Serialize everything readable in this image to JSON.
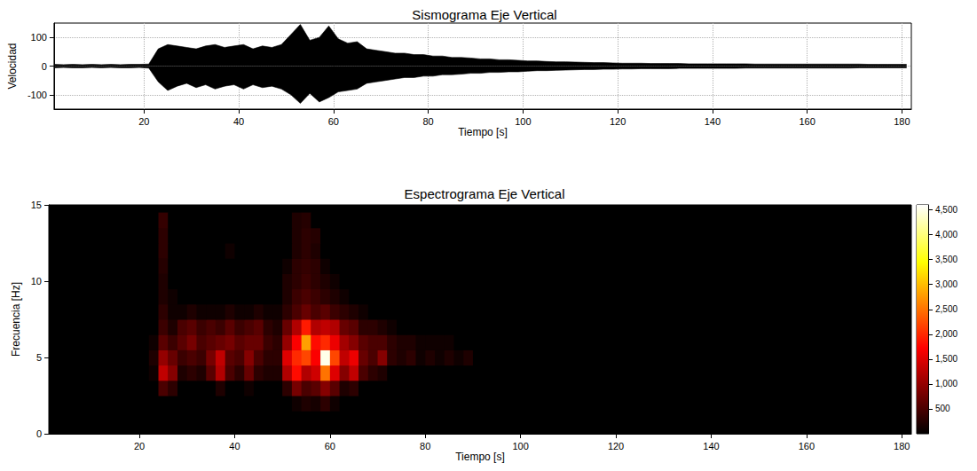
{
  "chart_data": [
    {
      "type": "line",
      "title": "Sismograma Eje Vertical",
      "xlabel": "Tiempo [s]",
      "ylabel": "Velocidad",
      "x": [
        1,
        3,
        5,
        7,
        9,
        11,
        13,
        15,
        17,
        19,
        21,
        23,
        25,
        27,
        29,
        31,
        33,
        35,
        37,
        39,
        41,
        43,
        45,
        47,
        49,
        51,
        53,
        55,
        57,
        59,
        61,
        63,
        65,
        67,
        69,
        71,
        73,
        75,
        77,
        79,
        81,
        83,
        85,
        87,
        89,
        91,
        93,
        95,
        97,
        99,
        101,
        103,
        105,
        107,
        109,
        111,
        113,
        115,
        117,
        119,
        121,
        123,
        125,
        127,
        129,
        131,
        133,
        135,
        137,
        139,
        141,
        143,
        145,
        147,
        149,
        151,
        153,
        155,
        157,
        159,
        161,
        163,
        165,
        167,
        169,
        171,
        173,
        175,
        177,
        179,
        181
      ],
      "series": [
        {
          "color": "#000000",
          "values": [
            6,
            5,
            6,
            5,
            6,
            5,
            6,
            5,
            6,
            6,
            7,
            60,
            75,
            70,
            65,
            60,
            70,
            75,
            65,
            70,
            75,
            60,
            70,
            65,
            75,
            110,
            145,
            90,
            100,
            140,
            95,
            80,
            85,
            60,
            55,
            50,
            45,
            45,
            40,
            40,
            35,
            35,
            30,
            30,
            28,
            25,
            25,
            22,
            22,
            20,
            18,
            18,
            16,
            15,
            15,
            14,
            13,
            12,
            12,
            11,
            10,
            10,
            10,
            9,
            9,
            9,
            9,
            8,
            8,
            8,
            8,
            8,
            8,
            8,
            7,
            7,
            7,
            7,
            7,
            7,
            7,
            7,
            7,
            7,
            7,
            7,
            6,
            6,
            6,
            6,
            6
          ]
        },
        {
          "color": "#000000",
          "values": [
            -6,
            -5,
            -6,
            -6,
            -5,
            -6,
            -5,
            -6,
            -6,
            -5,
            -7,
            -55,
            -85,
            -70,
            -60,
            -75,
            -65,
            -80,
            -70,
            -65,
            -80,
            -65,
            -75,
            -70,
            -80,
            -100,
            -130,
            -95,
            -125,
            -110,
            -90,
            -85,
            -80,
            -60,
            -55,
            -50,
            -45,
            -40,
            -40,
            -35,
            -35,
            -30,
            -30,
            -28,
            -25,
            -25,
            -22,
            -22,
            -20,
            -20,
            -18,
            -16,
            -16,
            -15,
            -14,
            -13,
            -12,
            -12,
            -11,
            -11,
            -10,
            -10,
            -9,
            -9,
            -9,
            -9,
            -8,
            -8,
            -8,
            -8,
            -8,
            -8,
            -8,
            -7,
            -7,
            -7,
            -7,
            -7,
            -7,
            -7,
            -7,
            -7,
            -7,
            -7,
            -7,
            -6,
            -6,
            -6,
            -6,
            -6,
            -6
          ]
        }
      ],
      "xlim": [
        1,
        182
      ],
      "xticks": [
        20,
        40,
        60,
        80,
        100,
        120,
        140,
        160,
        180
      ],
      "ylim": [
        -150,
        150
      ],
      "yticks": [
        -100,
        0,
        100
      ],
      "grid": true
    },
    {
      "type": "heatmap",
      "title": "Espectrograma Eje Vertical",
      "xlabel": "Tiempo [s]",
      "ylabel": "Frecuencia [Hz]",
      "x": [
        21,
        23,
        25,
        27,
        29,
        31,
        33,
        35,
        37,
        39,
        41,
        43,
        45,
        47,
        49,
        51,
        53,
        55,
        57,
        59,
        61,
        63,
        65,
        67,
        69,
        71,
        73,
        75,
        77,
        79,
        81,
        83,
        85,
        87,
        89,
        91
      ],
      "y": [
        2,
        3,
        4,
        5,
        6,
        7,
        8,
        9,
        10,
        11,
        12,
        13,
        14
      ],
      "cells": [
        [
          0,
          0,
          0,
          0,
          0,
          0,
          0,
          0,
          0,
          0,
          0,
          0,
          0,
          0,
          0,
          0,
          100,
          200,
          150,
          300,
          100,
          0,
          0,
          0,
          0,
          0,
          0,
          0,
          0,
          0,
          0,
          0,
          0,
          0,
          0,
          0
        ],
        [
          0,
          0,
          500,
          300,
          0,
          0,
          0,
          0,
          200,
          0,
          0,
          100,
          0,
          0,
          0,
          300,
          800,
          500,
          600,
          900,
          600,
          200,
          300,
          0,
          0,
          0,
          0,
          0,
          0,
          0,
          0,
          0,
          0,
          0,
          0,
          0
        ],
        [
          0,
          100,
          1300,
          900,
          200,
          300,
          200,
          600,
          1200,
          500,
          300,
          700,
          300,
          200,
          200,
          1200,
          1800,
          1200,
          1400,
          2500,
          1500,
          900,
          1300,
          500,
          300,
          200,
          0,
          0,
          0,
          0,
          0,
          0,
          0,
          0,
          0,
          0
        ],
        [
          0,
          200,
          1000,
          700,
          400,
          500,
          400,
          800,
          1300,
          600,
          500,
          900,
          500,
          300,
          300,
          1500,
          2000,
          2200,
          1700,
          4500,
          2200,
          1300,
          1600,
          700,
          500,
          900,
          300,
          200,
          300,
          100,
          200,
          100,
          200,
          100,
          200,
          0
        ],
        [
          0,
          100,
          600,
          400,
          600,
          800,
          500,
          600,
          700,
          800,
          600,
          700,
          700,
          400,
          300,
          1000,
          1700,
          2800,
          1800,
          2000,
          1600,
          1100,
          900,
          600,
          500,
          500,
          300,
          200,
          200,
          100,
          100,
          100,
          100,
          0,
          0,
          0
        ],
        [
          0,
          0,
          400,
          200,
          500,
          600,
          400,
          500,
          400,
          600,
          400,
          500,
          600,
          300,
          200,
          700,
          1200,
          1900,
          1200,
          1300,
          1200,
          700,
          600,
          300,
          300,
          200,
          100,
          0,
          0,
          0,
          0,
          0,
          0,
          0,
          0,
          0
        ],
        [
          0,
          0,
          300,
          100,
          100,
          200,
          100,
          100,
          100,
          200,
          100,
          100,
          200,
          100,
          100,
          300,
          500,
          700,
          500,
          600,
          400,
          300,
          200,
          100,
          0,
          0,
          0,
          0,
          0,
          0,
          0,
          0,
          0,
          0,
          0,
          0
        ],
        [
          0,
          0,
          200,
          100,
          0,
          0,
          0,
          0,
          0,
          0,
          0,
          0,
          0,
          0,
          0,
          200,
          400,
          500,
          400,
          300,
          200,
          100,
          0,
          0,
          0,
          0,
          0,
          0,
          0,
          0,
          0,
          0,
          0,
          0,
          0,
          0
        ],
        [
          0,
          0,
          200,
          0,
          0,
          0,
          0,
          0,
          0,
          0,
          0,
          0,
          0,
          0,
          0,
          200,
          300,
          400,
          300,
          200,
          100,
          0,
          0,
          0,
          0,
          0,
          0,
          0,
          0,
          0,
          0,
          0,
          0,
          0,
          0,
          0
        ],
        [
          0,
          0,
          250,
          0,
          0,
          0,
          0,
          0,
          0,
          0,
          0,
          0,
          0,
          0,
          0,
          100,
          300,
          350,
          300,
          100,
          0,
          0,
          0,
          0,
          0,
          0,
          0,
          0,
          0,
          0,
          0,
          0,
          0,
          0,
          0,
          0
        ],
        [
          0,
          0,
          300,
          0,
          0,
          0,
          0,
          0,
          0,
          100,
          0,
          0,
          0,
          0,
          0,
          0,
          200,
          300,
          200,
          0,
          0,
          0,
          0,
          0,
          0,
          0,
          0,
          0,
          0,
          0,
          0,
          0,
          0,
          0,
          0,
          0
        ],
        [
          0,
          0,
          300,
          0,
          0,
          0,
          0,
          0,
          0,
          0,
          0,
          0,
          0,
          0,
          0,
          0,
          200,
          300,
          250,
          0,
          0,
          0,
          0,
          0,
          0,
          0,
          0,
          0,
          0,
          0,
          0,
          0,
          0,
          0,
          0,
          0
        ],
        [
          0,
          0,
          350,
          0,
          0,
          0,
          0,
          0,
          0,
          0,
          0,
          0,
          0,
          0,
          0,
          0,
          200,
          250,
          0,
          0,
          0,
          0,
          0,
          0,
          0,
          0,
          0,
          0,
          0,
          0,
          0,
          0,
          0,
          0,
          0,
          0
        ]
      ],
      "xlim": [
        1,
        182
      ],
      "xticks": [
        20,
        40,
        60,
        80,
        100,
        120,
        140,
        160,
        180
      ],
      "ylim": [
        0,
        15
      ],
      "yticks": [
        0,
        5,
        10,
        15
      ],
      "colorbar": {
        "range": [
          0,
          4600
        ],
        "ticks": [
          500,
          1000,
          1500,
          2000,
          2500,
          3000,
          3500,
          4000,
          4500
        ]
      },
      "grid": false
    }
  ]
}
